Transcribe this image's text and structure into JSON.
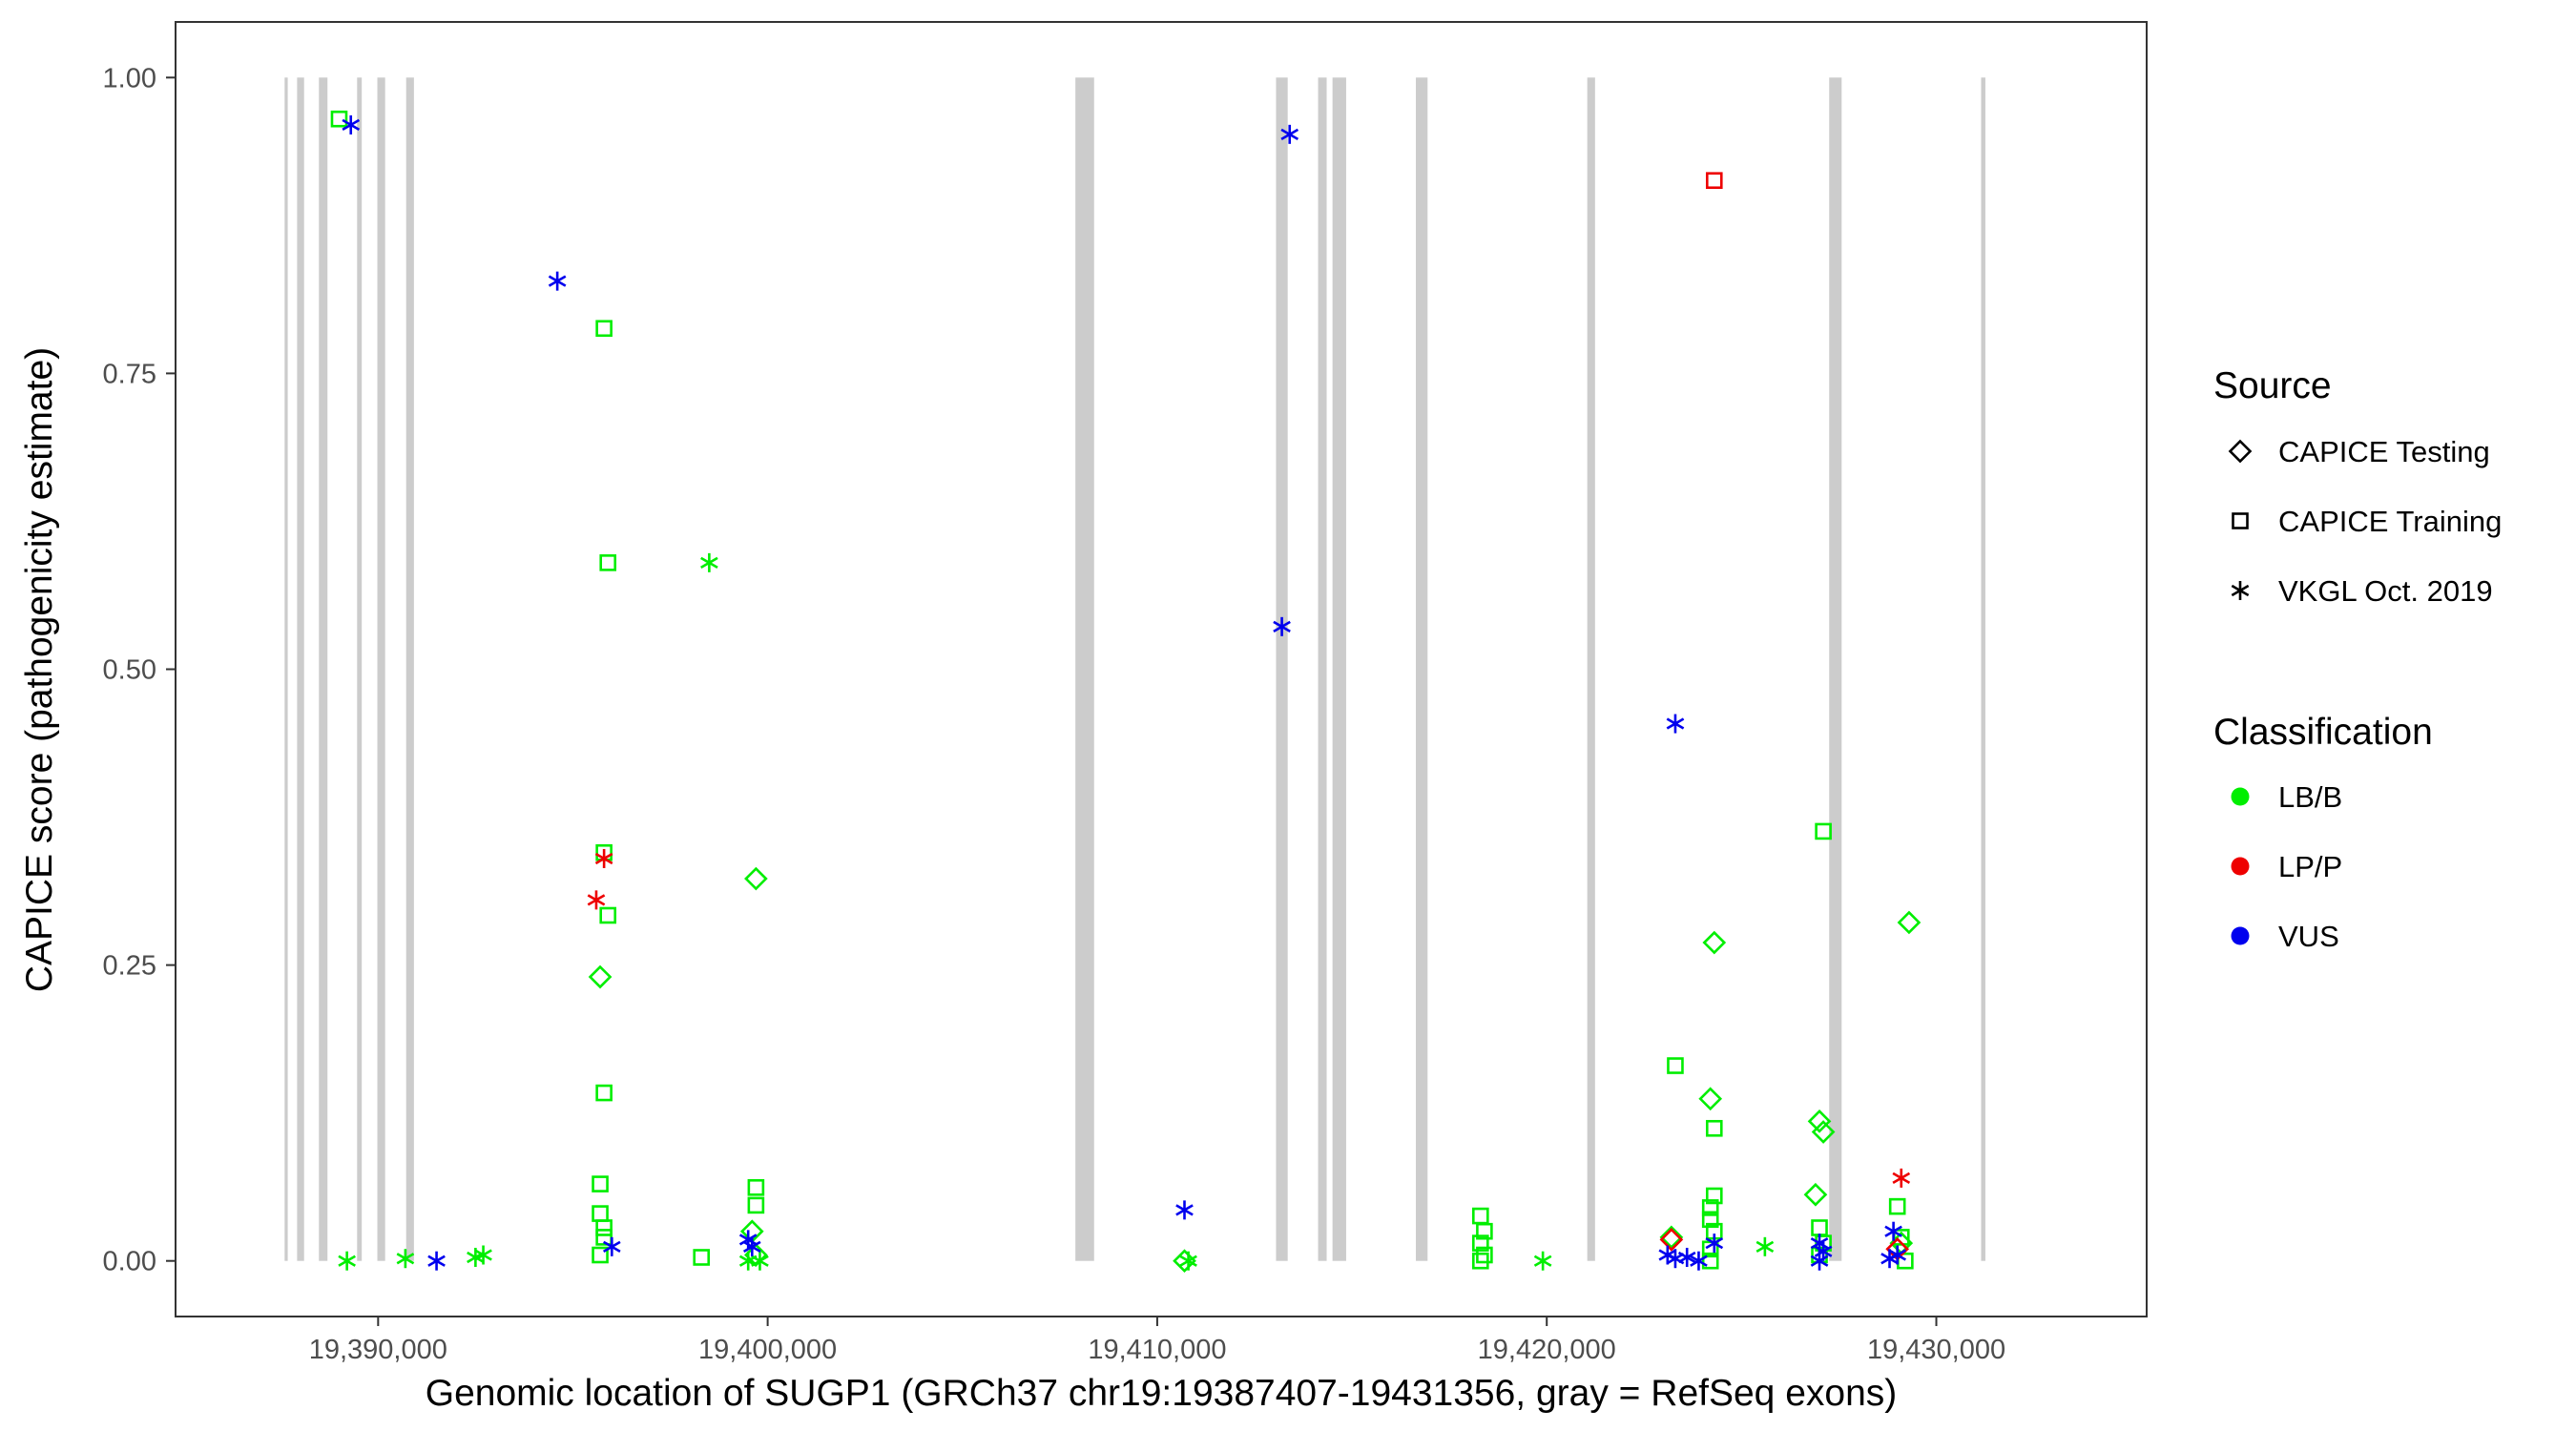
{
  "chart_data": {
    "type": "scatter",
    "xlabel": "Genomic location of SUGP1 (GRCh37 chr19:19387407-19431356, gray = RefSeq exons)",
    "ylabel": "CAPICE score (pathogenicity estimate)",
    "xlim": [
      19384800,
      19435400
    ],
    "ylim": [
      -0.047,
      1.047
    ],
    "x_ticks": [
      19390000,
      19400000,
      19410000,
      19420000,
      19430000
    ],
    "x_tick_labels": [
      "19,390,000",
      "19,400,000",
      "19,410,000",
      "19,420,000",
      "19,430,000"
    ],
    "y_ticks": [
      0,
      0.25,
      0.5,
      0.75,
      1.0
    ],
    "y_tick_labels": [
      "0.00",
      "0.25",
      "0.50",
      "0.75",
      "1.00"
    ],
    "grid": false,
    "legend_position": "right",
    "legend": {
      "source_title": "Source",
      "source_entries": [
        {
          "label": "CAPICE Testing",
          "shape": "diamond"
        },
        {
          "label": "CAPICE Training",
          "shape": "square"
        },
        {
          "label": "VKGL Oct. 2019",
          "shape": "asterisk"
        }
      ],
      "classification_title": "Classification",
      "classification_entries": [
        {
          "label": "LB/B",
          "color": "#00ee00"
        },
        {
          "label": "LP/P",
          "color": "#ee0000"
        },
        {
          "label": "VUS",
          "color": "#0000ee"
        }
      ]
    },
    "exons": [
      [
        19387600,
        19387680
      ],
      [
        19387920,
        19388100
      ],
      [
        19388480,
        19388700
      ],
      [
        19389460,
        19389580
      ],
      [
        19389980,
        19390180
      ],
      [
        19390720,
        19390920
      ],
      [
        19407900,
        19408380
      ],
      [
        19413050,
        19413350
      ],
      [
        19414130,
        19414350
      ],
      [
        19414500,
        19414850
      ],
      [
        19416640,
        19416940
      ],
      [
        19421040,
        19421240
      ],
      [
        19427250,
        19427570
      ],
      [
        19431150,
        19431260
      ]
    ],
    "series": [
      {
        "source": "CAPICE Training",
        "classification": "LB/B",
        "points": [
          [
            19389000,
            0.965
          ],
          [
            19395800,
            0.788
          ],
          [
            19395900,
            0.59
          ],
          [
            19395800,
            0.345
          ],
          [
            19395900,
            0.292
          ],
          [
            19395800,
            0.142
          ],
          [
            19395700,
            0.065
          ],
          [
            19395700,
            0.04
          ],
          [
            19395800,
            0.028
          ],
          [
            19395800,
            0.02
          ],
          [
            19395700,
            0.005
          ],
          [
            19398300,
            0.003
          ],
          [
            19399700,
            0.062
          ],
          [
            19399700,
            0.047
          ],
          [
            19418300,
            0.038
          ],
          [
            19418400,
            0.025
          ],
          [
            19418300,
            0.015
          ],
          [
            19418400,
            0.005
          ],
          [
            19418300,
            0.0
          ],
          [
            19423300,
            0.165
          ],
          [
            19424300,
            0.112
          ],
          [
            19424300,
            0.055
          ],
          [
            19424200,
            0.045
          ],
          [
            19424200,
            0.035
          ],
          [
            19424300,
            0.025
          ],
          [
            19424200,
            0.01
          ],
          [
            19424200,
            0.0
          ],
          [
            19427100,
            0.363
          ],
          [
            19427000,
            0.028
          ],
          [
            19427100,
            0.015
          ],
          [
            19427000,
            0.005
          ],
          [
            19429000,
            0.046
          ],
          [
            19429100,
            0.02
          ],
          [
            19429200,
            0.0
          ]
        ]
      },
      {
        "source": "CAPICE Training",
        "classification": "LP/P",
        "points": [
          [
            19424300,
            0.913
          ]
        ]
      },
      {
        "source": "CAPICE Testing",
        "classification": "LB/B",
        "points": [
          [
            19395700,
            0.24
          ],
          [
            19399700,
            0.323
          ],
          [
            19399600,
            0.025
          ],
          [
            19399700,
            0.005
          ],
          [
            19410700,
            0.0
          ],
          [
            19423200,
            0.02
          ],
          [
            19424300,
            0.269
          ],
          [
            19424200,
            0.137
          ],
          [
            19427000,
            0.118
          ],
          [
            19427100,
            0.109
          ],
          [
            19426900,
            0.056
          ],
          [
            19429300,
            0.286
          ],
          [
            19429100,
            0.015
          ]
        ]
      },
      {
        "source": "CAPICE Testing",
        "classification": "LP/P",
        "points": [
          [
            19423200,
            0.018
          ],
          [
            19429000,
            0.01
          ]
        ]
      },
      {
        "source": "VKGL Oct. 2019",
        "classification": "LB/B",
        "points": [
          [
            19398500,
            0.59
          ],
          [
            19389200,
            0.0
          ],
          [
            19390700,
            0.002
          ],
          [
            19392500,
            0.003
          ],
          [
            19392700,
            0.005
          ],
          [
            19399500,
            0.0
          ],
          [
            19399800,
            0.0
          ],
          [
            19410800,
            0.0
          ],
          [
            19419900,
            0.0
          ],
          [
            19425600,
            0.012
          ]
        ]
      },
      {
        "source": "VKGL Oct. 2019",
        "classification": "LP/P",
        "points": [
          [
            19395800,
            0.34
          ],
          [
            19395600,
            0.305
          ],
          [
            19429100,
            0.07
          ]
        ]
      },
      {
        "source": "VKGL Oct. 2019",
        "classification": "VUS",
        "points": [
          [
            19389300,
            0.96
          ],
          [
            19394600,
            0.828
          ],
          [
            19413400,
            0.952
          ],
          [
            19413200,
            0.536
          ],
          [
            19423300,
            0.454
          ],
          [
            19410700,
            0.043
          ],
          [
            19391500,
            0.0
          ],
          [
            19396000,
            0.012
          ],
          [
            19399500,
            0.018
          ],
          [
            19399600,
            0.012
          ],
          [
            19423100,
            0.005
          ],
          [
            19423300,
            0.002
          ],
          [
            19423600,
            0.003
          ],
          [
            19423900,
            0.0
          ],
          [
            19424300,
            0.015
          ],
          [
            19427000,
            0.015
          ],
          [
            19427100,
            0.008
          ],
          [
            19427000,
            0.0
          ],
          [
            19428900,
            0.025
          ],
          [
            19429000,
            0.005
          ],
          [
            19428800,
            0.002
          ]
        ]
      }
    ]
  }
}
